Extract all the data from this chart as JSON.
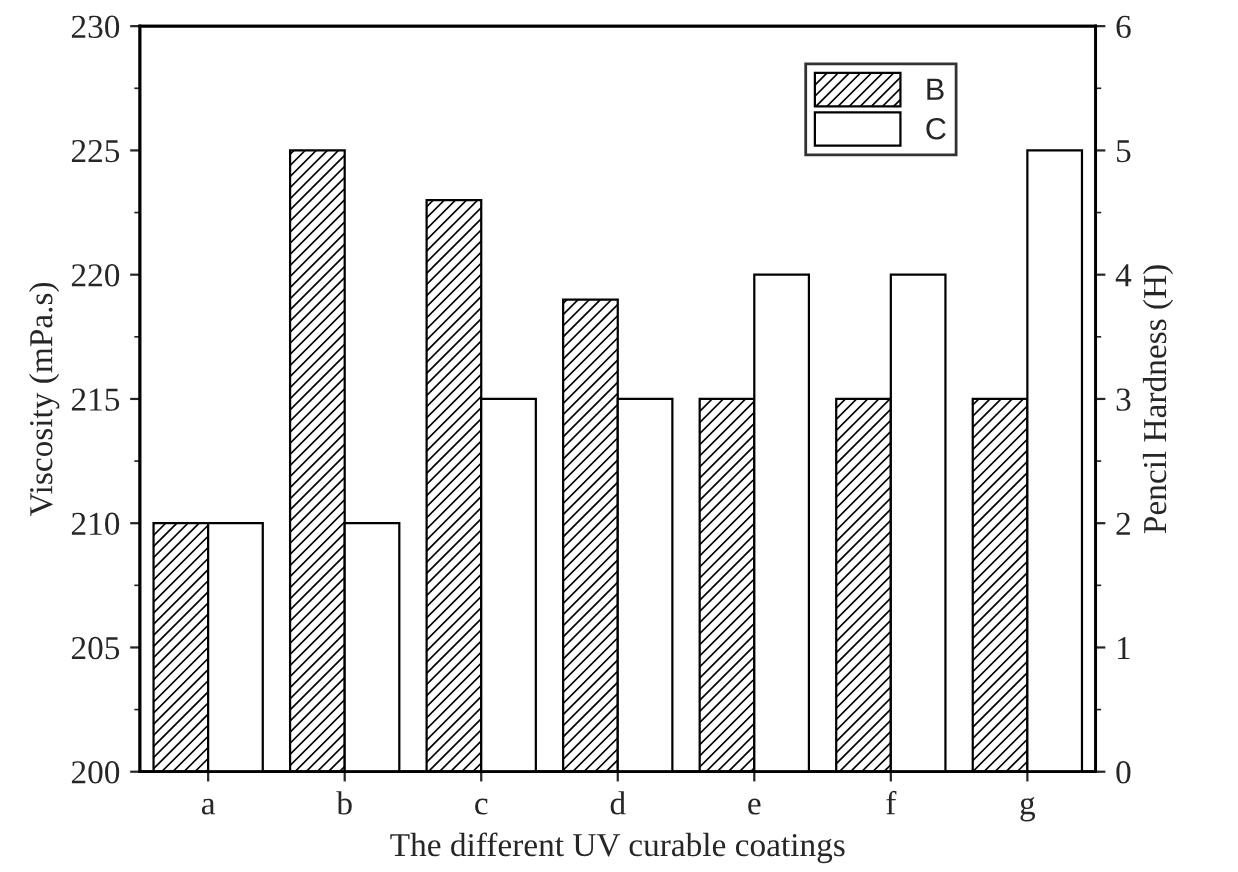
{
  "chart_data": {
    "type": "bar",
    "xlabel": "The different UV curable coatings",
    "ylabel": "Viscosity (mPa.s)",
    "y2label": "Pencil Hardness (H)",
    "categories": [
      "a",
      "b",
      "c",
      "d",
      "e",
      "f",
      "g"
    ],
    "series": [
      {
        "name": "B",
        "color": "#000000",
        "values": [
          210,
          225,
          223,
          219,
          215,
          215,
          215
        ]
      },
      {
        "name": "C",
        "color": "#ffffff",
        "axis": "y2",
        "values": [
          2,
          2,
          3,
          3,
          4,
          4,
          5
        ]
      }
    ],
    "ylim": [
      200,
      230
    ],
    "yticks": [
      200,
      205,
      210,
      215,
      220,
      225,
      230
    ],
    "y2lim": [
      0,
      6
    ],
    "y2ticks": [
      0,
      1,
      2,
      3,
      4,
      5,
      6
    ],
    "grid": false,
    "legend": "top right"
  }
}
